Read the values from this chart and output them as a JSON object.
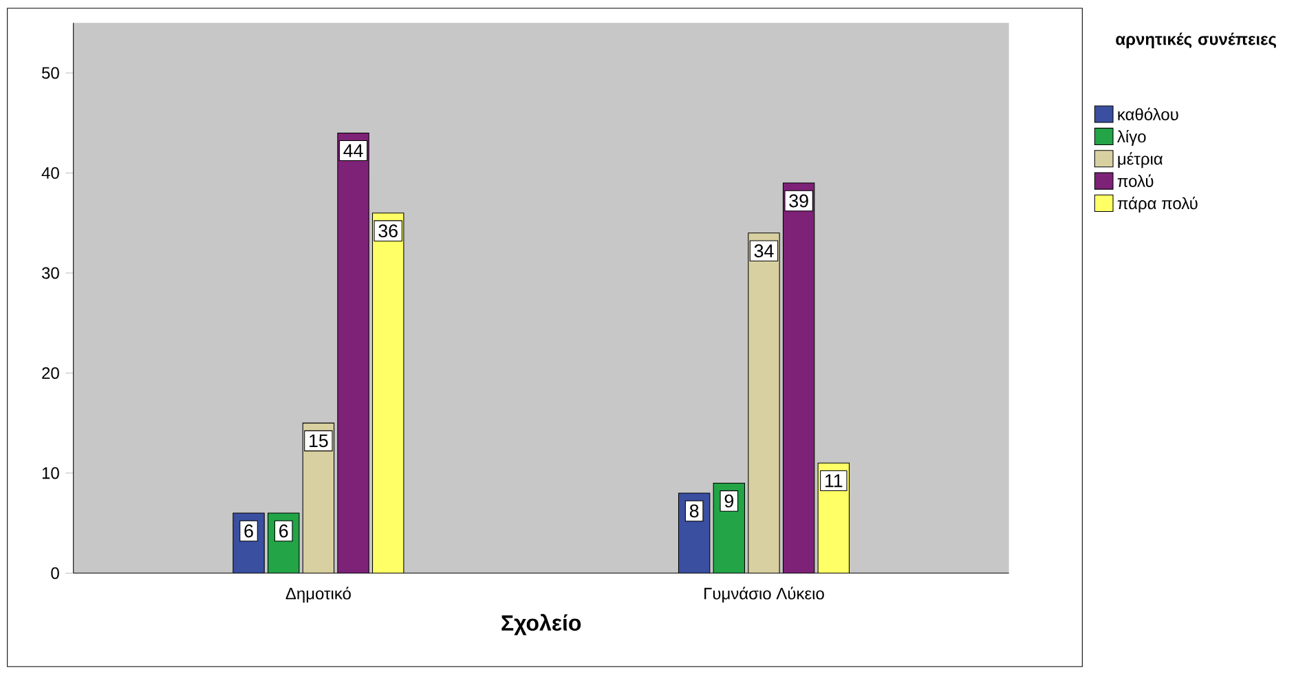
{
  "chart_data": {
    "type": "bar",
    "xlabel": "Σχολείο",
    "legend_title": "αρνητικές συνέπειες",
    "categories": [
      "Δημοτικό",
      "Γυμνάσιο Λύκειο"
    ],
    "series": [
      {
        "name": "καθόλου",
        "color": "#3a4fa0",
        "values": [
          6,
          8
        ]
      },
      {
        "name": "λίγο",
        "color": "#22a447",
        "values": [
          6,
          9
        ]
      },
      {
        "name": "μέτρια",
        "color": "#d8d0a0",
        "values": [
          15,
          34
        ]
      },
      {
        "name": "πολύ",
        "color": "#7e2278",
        "values": [
          44,
          39
        ]
      },
      {
        "name": "πάρα πολύ",
        "color": "#ffff66",
        "values": [
          36,
          11
        ]
      }
    ],
    "ylim": [
      0,
      55
    ],
    "yticks": [
      0,
      10,
      20,
      30,
      40,
      50
    ],
    "grid": false,
    "legend": "top right",
    "data_labels": true
  }
}
